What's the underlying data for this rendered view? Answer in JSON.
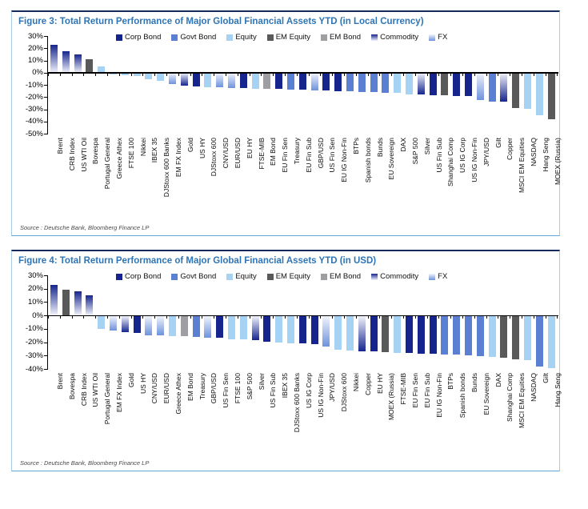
{
  "colors": {
    "corp": "#16258e",
    "govt": "#5a7fd3",
    "equity": "#a6d3f3",
    "em_equity": "#595959",
    "em_bond": "#9e9ea3",
    "commodity": "#16258e",
    "fx": "#6e92dd",
    "gradient_light": "#f2f4fb",
    "title_blue": "#2e75b6",
    "box_border": "#a9cde9",
    "box_top": "#142a5c"
  },
  "chart_data": [
    {
      "type": "bar",
      "title": "Figure 3: Total Return Performance of Major Global Financial Assets YTD (in Local Currency)",
      "source": "Source : Deutsche Bank, Bloomberg Finance LP",
      "ylabel": "",
      "xlabel": "",
      "ylim": [
        -50,
        30
      ],
      "yticks": [
        "30%",
        "20%",
        "10%",
        "0%",
        "-10%",
        "-20%",
        "-30%",
        "-40%",
        "-50%"
      ],
      "grid": false,
      "legend_position": "top",
      "legend": [
        {
          "label": "Corp Bond",
          "type": "corp"
        },
        {
          "label": "Govt Bond",
          "type": "govt"
        },
        {
          "label": "Equity",
          "type": "equity"
        },
        {
          "label": "EM Equity",
          "type": "em_equity"
        },
        {
          "label": "EM Bond",
          "type": "em_bond"
        },
        {
          "label": "Commodity",
          "type": "commodity"
        },
        {
          "label": "FX",
          "type": "fx"
        }
      ],
      "categories": [
        "Brent",
        "CRB Index",
        "US WTI Oil",
        "Bovespa",
        "Portugal General",
        "Greece Athex",
        "FTSE 100",
        "Nikkei",
        "IBEX 35",
        "DJStoxx 600 Banks",
        "EM FX Index",
        "Gold",
        "US HY",
        "DJStoxx 600",
        "CNY/USD",
        "EUR/USD",
        "EU HY",
        "FTSE-MIB",
        "EM Bond",
        "EU Fin Sen",
        "Treasury",
        "EU Fin Sub",
        "GBP/USD",
        "US Fin Sen",
        "EU IG Non-Fin",
        "BTPs",
        "Spanish bonds",
        "Bunds",
        "EU Sovereign",
        "DAX",
        "S&P 500",
        "Silver",
        "US Fin Sub",
        "Shanghai Comp",
        "US IG Corp",
        "US IG Non-Fin",
        "JPY/USD",
        "Gilt",
        "Copper",
        "MSCI EM Equities",
        "NASDAQ",
        "Hang Seng",
        "MOEX (Russia)"
      ],
      "values": [
        23,
        17.5,
        15,
        10.7,
        4.8,
        -1,
        -1.6,
        -2.5,
        -4.8,
        -6.5,
        -9,
        -10.3,
        -10.8,
        -11.2,
        -11.5,
        -11.9,
        -12.2,
        -12.5,
        -12.8,
        -13.1,
        -13.4,
        -13.7,
        -14,
        -14.3,
        -14.6,
        -14.9,
        -15.2,
        -15.5,
        -15.8,
        -16.3,
        -17.2,
        -17.5,
        -17.9,
        -18.2,
        -18.6,
        -19,
        -21.8,
        -23,
        -23.5,
        -28.7,
        -29.5,
        -34.5,
        -37.8
      ],
      "types": [
        "commodity",
        "commodity",
        "commodity",
        "em_equity",
        "equity",
        "equity",
        "equity",
        "equity",
        "equity",
        "equity",
        "fx",
        "commodity",
        "corp",
        "equity",
        "fx",
        "fx",
        "corp",
        "equity",
        "em_bond",
        "corp",
        "govt",
        "corp",
        "fx",
        "corp",
        "corp",
        "govt",
        "govt",
        "govt",
        "govt",
        "equity",
        "equity",
        "commodity",
        "corp",
        "em_equity",
        "corp",
        "corp",
        "fx",
        "govt",
        "commodity",
        "em_equity",
        "equity",
        "equity",
        "em_equity"
      ]
    },
    {
      "type": "bar",
      "title": "Figure 4: Total Return Performance of Major Global Financial Assets YTD (in USD)",
      "source": "Source : Deutsche Bank, Bloomberg Finance LP",
      "ylabel": "",
      "xlabel": "",
      "ylim": [
        -40,
        30
      ],
      "yticks": [
        "30%",
        "20%",
        "10%",
        "0%",
        "-10%",
        "-20%",
        "-30%",
        "-40%"
      ],
      "grid": false,
      "legend_position": "top",
      "legend": [
        {
          "label": "Corp Bond",
          "type": "corp"
        },
        {
          "label": "Govt Bond",
          "type": "govt"
        },
        {
          "label": "Equity",
          "type": "equity"
        },
        {
          "label": "EM Equity",
          "type": "em_equity"
        },
        {
          "label": "EM Bond",
          "type": "em_bond"
        },
        {
          "label": "Commodity",
          "type": "commodity"
        },
        {
          "label": "FX",
          "type": "fx"
        }
      ],
      "categories": [
        "Brent",
        "Bovespa",
        "CRB Index",
        "US WTI Oil",
        "Portugal General",
        "EM FX Index",
        "Gold",
        "US HY",
        "CNY/USD",
        "EUR/USD",
        "Greece Athex",
        "EM Bond",
        "Treasury",
        "GBP/USD",
        "US Fin Sen",
        "FTSE 100",
        "S&P 500",
        "Silver",
        "US Fin Sub",
        "IBEX 35",
        "DJStoxx 600 Banks",
        "US IG Corp",
        "US IG Non-Fin",
        "JPY/USD",
        "DJStoxx 600",
        "Nikkei",
        "Copper",
        "EU HY",
        "MOEX (Russia)",
        "FTSE-MIB",
        "EU Fin Sen",
        "EU Fin Sub",
        "EU IG Non-Fin",
        "BTPs",
        "Spanish bonds",
        "Bunds",
        "EU Sovereign",
        "DAX",
        "Shanghai Comp",
        "MSCI EM Equities",
        "NASDAQ",
        "Gilt",
        "Hang Seng"
      ],
      "values": [
        22.7,
        19.2,
        17.9,
        15,
        -9.6,
        -10.6,
        -11.8,
        -12.5,
        -14.3,
        -14.6,
        -15,
        -15.3,
        -15.6,
        -16,
        -16.5,
        -17.2,
        -17.5,
        -18.2,
        -19,
        -19.8,
        -20.3,
        -20.6,
        -21,
        -22.6,
        -25.3,
        -25.7,
        -26.2,
        -26.6,
        -27,
        -27.4,
        -27.8,
        -28.1,
        -28.4,
        -28.7,
        -29,
        -29.5,
        -30,
        -30.5,
        -31.2,
        -32.3,
        -33,
        -38,
        -39
      ],
      "types": [
        "commodity",
        "em_equity",
        "commodity",
        "commodity",
        "equity",
        "fx",
        "commodity",
        "corp",
        "fx",
        "fx",
        "equity",
        "em_bond",
        "govt",
        "fx",
        "corp",
        "equity",
        "equity",
        "commodity",
        "corp",
        "equity",
        "equity",
        "corp",
        "corp",
        "fx",
        "equity",
        "equity",
        "commodity",
        "corp",
        "em_equity",
        "equity",
        "corp",
        "corp",
        "corp",
        "govt",
        "govt",
        "govt",
        "govt",
        "equity",
        "em_equity",
        "em_equity",
        "equity",
        "govt",
        "equity"
      ]
    }
  ]
}
